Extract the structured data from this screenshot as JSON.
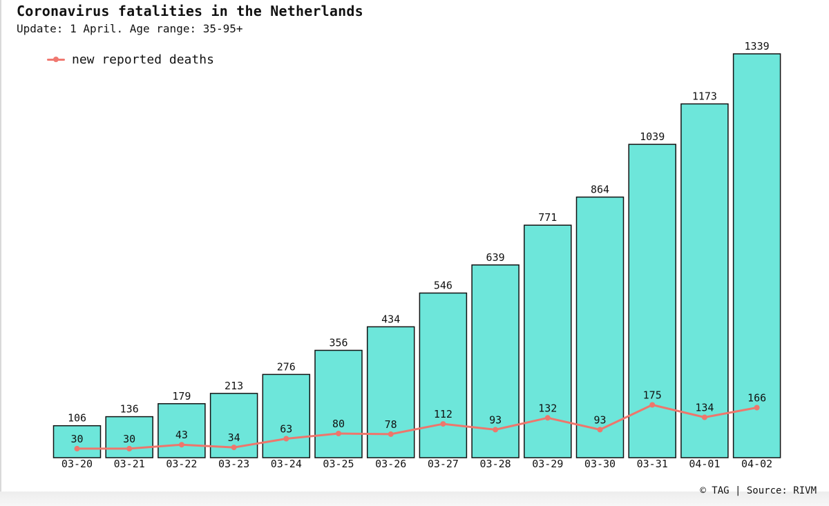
{
  "header": {
    "title": "Coronavirus fatalities in the Netherlands",
    "subtitle": "Update: 1 April. Age range: 35-95+"
  },
  "legend": {
    "label": "new reported deaths",
    "color": "#f07870"
  },
  "footer": {
    "credit": "© TAG | Source: RIVM"
  },
  "colors": {
    "bar_fill": "#6de6da",
    "bar_stroke": "#111111",
    "line": "#ee766c"
  },
  "chart_data": {
    "type": "bar",
    "categories": [
      "03-20",
      "03-21",
      "03-22",
      "03-23",
      "03-24",
      "03-25",
      "03-26",
      "03-27",
      "03-28",
      "03-29",
      "03-30",
      "03-31",
      "04-01",
      "04-02"
    ],
    "series": [
      {
        "type": "bar",
        "values": [
          106,
          136,
          179,
          213,
          276,
          356,
          434,
          546,
          639,
          771,
          864,
          1039,
          1173,
          1339
        ]
      },
      {
        "type": "line",
        "name": "new reported deaths",
        "values": [
          30,
          30,
          43,
          34,
          63,
          80,
          78,
          112,
          93,
          132,
          93,
          175,
          134,
          166
        ]
      }
    ],
    "data_labels": true,
    "ylim": [
      0,
      1339
    ],
    "grid": false,
    "legend_position": "top-left"
  }
}
